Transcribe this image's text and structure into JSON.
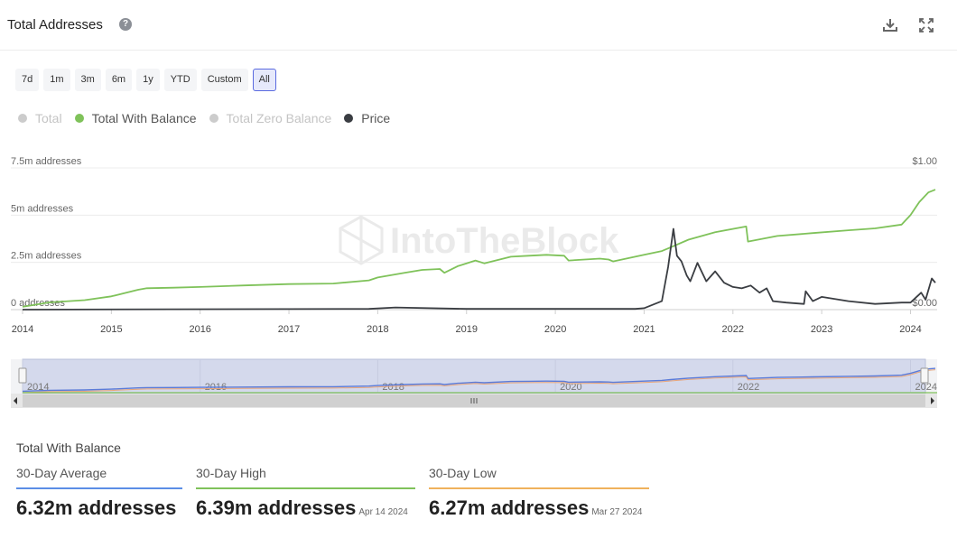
{
  "header": {
    "title": "Total Addresses",
    "help_icon": "question-circle-icon",
    "download_icon": "download-icon",
    "fullscreen_icon": "expand-icon"
  },
  "range_buttons": [
    "7d",
    "1m",
    "3m",
    "6m",
    "1y",
    "YTD",
    "Custom",
    "All"
  ],
  "active_range": "All",
  "legend": [
    {
      "label": "Total",
      "color": "#cccccc",
      "enabled": false
    },
    {
      "label": "Total With Balance",
      "color": "#7fc25a",
      "enabled": true
    },
    {
      "label": "Total Zero Balance",
      "color": "#cccccc",
      "enabled": false
    },
    {
      "label": "Price",
      "color": "#3a3d42",
      "enabled": true
    }
  ],
  "watermark": "IntoTheBlock",
  "chart_data": {
    "type": "line",
    "x_ticks": [
      "2014",
      "2015",
      "2016",
      "2017",
      "2018",
      "2019",
      "2020",
      "2021",
      "2022",
      "2023",
      "2024"
    ],
    "y_left_ticks": [
      "0 addresses",
      "2.5m addresses",
      "5m addresses",
      "7.5m addresses"
    ],
    "y_right_ticks": [
      "$0.00",
      "$1.00"
    ],
    "y_left_range": [
      0,
      7500000
    ],
    "y_right_range": [
      0,
      1
    ],
    "grid": true,
    "series": [
      {
        "name": "Total With Balance",
        "axis": "left",
        "color": "#7fc25a",
        "points": [
          [
            2014.0,
            150000
          ],
          [
            2014.3,
            380000
          ],
          [
            2014.7,
            500000
          ],
          [
            2015.0,
            700000
          ],
          [
            2015.3,
            1050000
          ],
          [
            2015.4,
            1130000
          ],
          [
            2015.7,
            1160000
          ],
          [
            2016.0,
            1200000
          ],
          [
            2016.5,
            1280000
          ],
          [
            2017.0,
            1350000
          ],
          [
            2017.5,
            1380000
          ],
          [
            2017.9,
            1550000
          ],
          [
            2018.0,
            1700000
          ],
          [
            2018.3,
            1950000
          ],
          [
            2018.5,
            2100000
          ],
          [
            2018.7,
            2150000
          ],
          [
            2018.75,
            1950000
          ],
          [
            2018.9,
            2300000
          ],
          [
            2019.1,
            2600000
          ],
          [
            2019.2,
            2450000
          ],
          [
            2019.5,
            2800000
          ],
          [
            2019.7,
            2850000
          ],
          [
            2019.9,
            2900000
          ],
          [
            2020.1,
            2850000
          ],
          [
            2020.15,
            2600000
          ],
          [
            2020.5,
            2700000
          ],
          [
            2020.6,
            2650000
          ],
          [
            2020.65,
            2550000
          ],
          [
            2021.0,
            2900000
          ],
          [
            2021.2,
            3100000
          ],
          [
            2021.3,
            3300000
          ],
          [
            2021.5,
            3700000
          ],
          [
            2021.8,
            4100000
          ],
          [
            2022.15,
            4400000
          ],
          [
            2022.17,
            3600000
          ],
          [
            2022.5,
            3900000
          ],
          [
            2022.9,
            4050000
          ],
          [
            2023.3,
            4200000
          ],
          [
            2023.6,
            4300000
          ],
          [
            2023.9,
            4500000
          ],
          [
            2024.0,
            5000000
          ],
          [
            2024.1,
            5700000
          ],
          [
            2024.2,
            6200000
          ],
          [
            2024.28,
            6350000
          ]
        ]
      },
      {
        "name": "Price",
        "axis": "right",
        "color": "#3a3d42",
        "points": [
          [
            2014.0,
            0.0
          ],
          [
            2017.9,
            0.005
          ],
          [
            2018.2,
            0.015
          ],
          [
            2019.0,
            0.005
          ],
          [
            2020.9,
            0.005
          ],
          [
            2021.0,
            0.01
          ],
          [
            2021.2,
            0.06
          ],
          [
            2021.27,
            0.3
          ],
          [
            2021.33,
            0.57
          ],
          [
            2021.37,
            0.38
          ],
          [
            2021.42,
            0.34
          ],
          [
            2021.48,
            0.24
          ],
          [
            2021.52,
            0.2
          ],
          [
            2021.6,
            0.33
          ],
          [
            2021.7,
            0.2
          ],
          [
            2021.8,
            0.27
          ],
          [
            2021.9,
            0.19
          ],
          [
            2022.0,
            0.16
          ],
          [
            2022.1,
            0.15
          ],
          [
            2022.2,
            0.17
          ],
          [
            2022.3,
            0.12
          ],
          [
            2022.38,
            0.15
          ],
          [
            2022.45,
            0.06
          ],
          [
            2022.6,
            0.05
          ],
          [
            2022.8,
            0.04
          ],
          [
            2022.82,
            0.13
          ],
          [
            2022.9,
            0.06
          ],
          [
            2023.0,
            0.09
          ],
          [
            2023.3,
            0.06
          ],
          [
            2023.6,
            0.04
          ],
          [
            2023.9,
            0.05
          ],
          [
            2024.0,
            0.05
          ],
          [
            2024.12,
            0.12
          ],
          [
            2024.17,
            0.07
          ],
          [
            2024.24,
            0.22
          ],
          [
            2024.28,
            0.19
          ]
        ]
      }
    ]
  },
  "navigator": {
    "x_ticks": [
      "2014",
      "2016",
      "2018",
      "2020",
      "2022",
      "2024"
    ],
    "scroll_left_icon": "arrow-left-icon",
    "scroll_right_icon": "arrow-right-icon",
    "grip_icon": "grip-icon"
  },
  "stats": {
    "title": "Total With Balance",
    "items": [
      {
        "label": "30-Day Average",
        "value": "6.32m addresses",
        "date": "",
        "color": "#5b8ee6"
      },
      {
        "label": "30-Day High",
        "value": "6.39m addresses",
        "date": "Apr 14 2024",
        "color": "#7fc25a"
      },
      {
        "label": "30-Day Low",
        "value": "6.27m addresses",
        "date": "Mar 27 2024",
        "color": "#f0b25c"
      }
    ]
  }
}
